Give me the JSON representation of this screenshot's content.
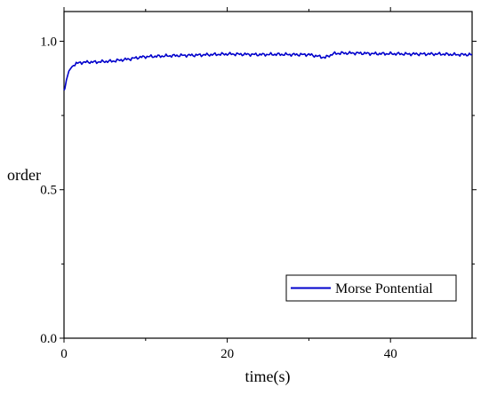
{
  "chart_data": {
    "type": "line",
    "xlabel": "time(s)",
    "ylabel": "order",
    "xlim": [
      0,
      50
    ],
    "ylim": [
      0,
      1.1
    ],
    "x_ticks": [
      0,
      20,
      40
    ],
    "x_tick_labels": [
      "0",
      "20",
      "40"
    ],
    "y_ticks": [
      0,
      0.5,
      1.0
    ],
    "y_tick_labels": [
      "0.0",
      "0.5",
      "1.0"
    ],
    "grid": false,
    "legend_position": "bottom-right",
    "series": [
      {
        "name": "Morse Pontential",
        "color": "#0000cc",
        "x": [
          0,
          0.1,
          0.3,
          0.6,
          1,
          1.5,
          2,
          3,
          4,
          5,
          6,
          7,
          8,
          9,
          10,
          12,
          14,
          16,
          18,
          20,
          22,
          24,
          26,
          28,
          30,
          31,
          32,
          33,
          34,
          36,
          38,
          40,
          42,
          44,
          46,
          48,
          50
        ],
        "y": [
          0.835,
          0.84,
          0.87,
          0.9,
          0.915,
          0.925,
          0.928,
          0.93,
          0.93,
          0.932,
          0.933,
          0.937,
          0.94,
          0.945,
          0.948,
          0.95,
          0.952,
          0.953,
          0.955,
          0.957,
          0.956,
          0.955,
          0.956,
          0.955,
          0.955,
          0.95,
          0.945,
          0.958,
          0.96,
          0.96,
          0.958,
          0.958,
          0.957,
          0.957,
          0.957,
          0.955,
          0.955
        ]
      }
    ]
  }
}
